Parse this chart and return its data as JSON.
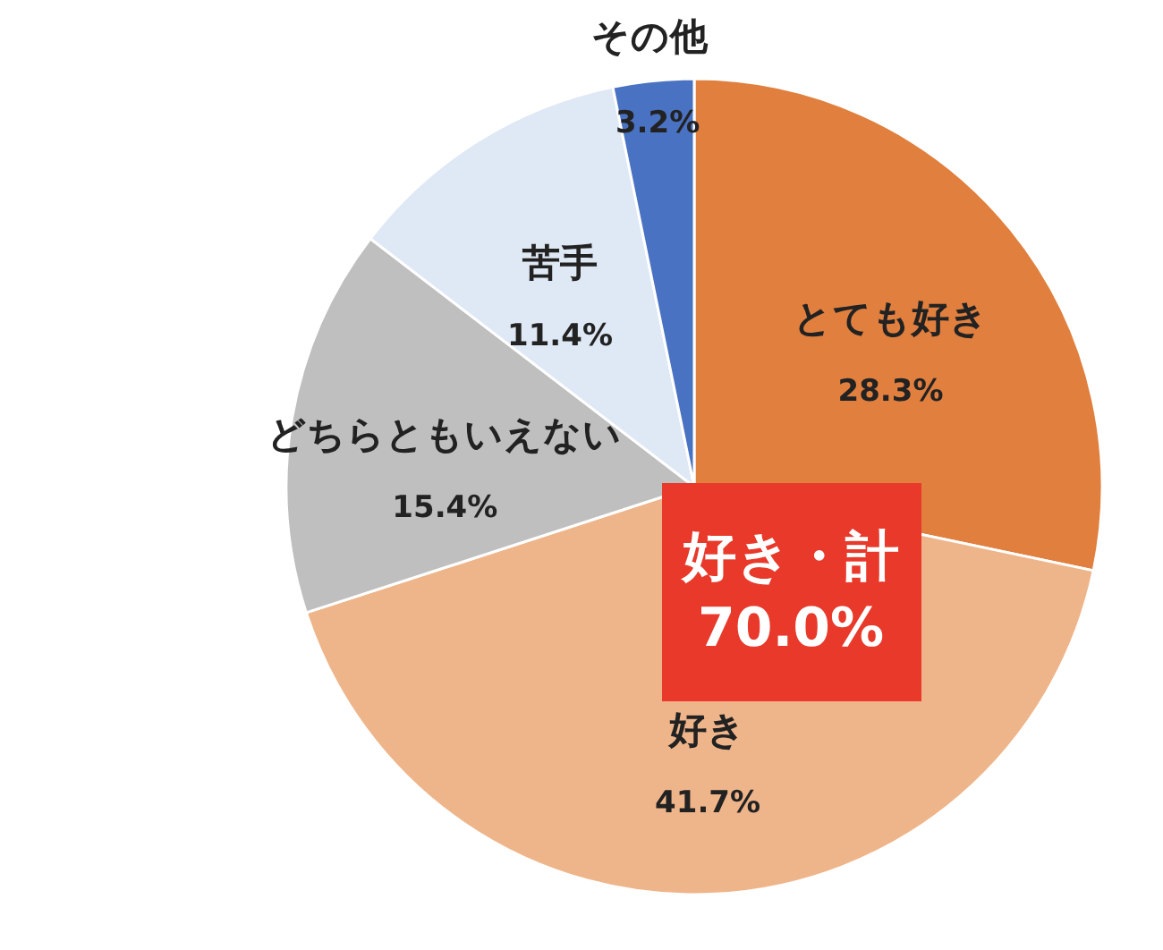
{
  "chart_data": {
    "type": "pie",
    "categories": [
      "とても好き",
      "好き",
      "どちらともいえない",
      "苦手",
      "その他"
    ],
    "values": [
      28.3,
      41.7,
      15.4,
      11.4,
      3.2
    ],
    "colors": [
      "#e07f3e",
      "#efb58a",
      "#bfbfbf",
      "#dfe8f5",
      "#4a72c2"
    ],
    "value_labels": [
      "28.3%",
      "41.7%",
      "15.4%",
      "11.4%",
      "3.2%"
    ],
    "annotations": [
      "好き・計\n70.0%"
    ]
  }
}
